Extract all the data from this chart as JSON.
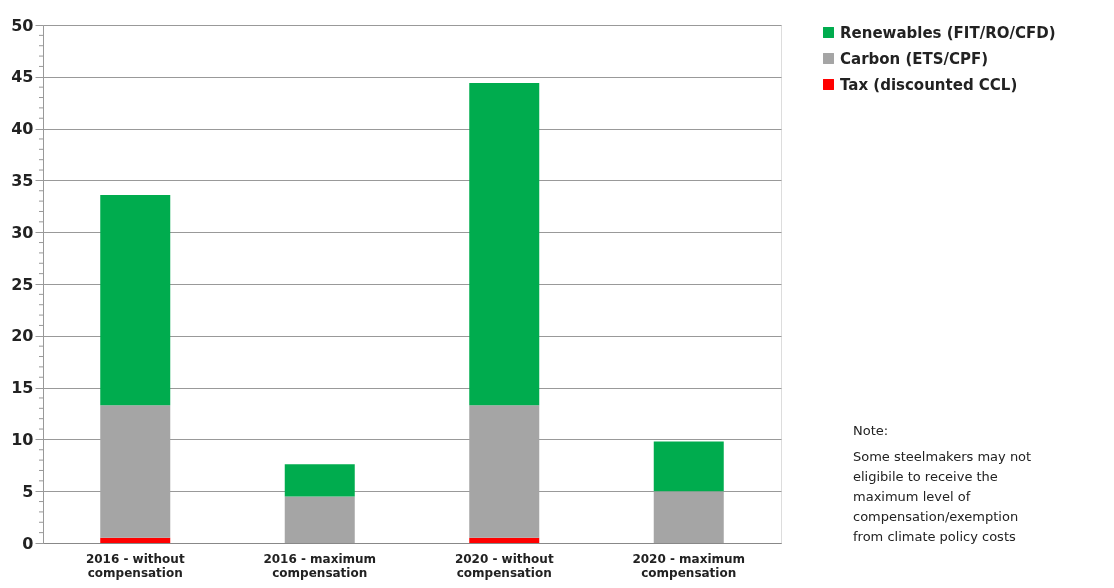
{
  "chart_data": {
    "type": "bar",
    "stacked": true,
    "categories": [
      "2016 - without compensation",
      "2016 - maximum compensation",
      "2020 - without compensation",
      "2020 - maximum compensation"
    ],
    "series": [
      {
        "name": "Tax  (discounted CCL)",
        "color": "#ff0000",
        "values": [
          0.5,
          0,
          0.5,
          0
        ]
      },
      {
        "name": "Carbon  (ETS/CPF)",
        "color": "#a5a5a5",
        "values": [
          12.8,
          4.5,
          12.8,
          5.0
        ]
      },
      {
        "name": "Renewables  (FIT/RO/CFD)",
        "color": "#00ac4e",
        "values": [
          20.3,
          3.1,
          31.1,
          4.8
        ]
      }
    ],
    "ylim": [
      0,
      50
    ],
    "yticks": [
      0,
      {
        "value": 1,
        "label": null
      },
      {
        "value": 2,
        "label": null
      },
      {
        "value": 3,
        "label": null
      },
      {
        "value": 4,
        "label": null
      },
      5,
      {
        "value": 6,
        "label": null
      },
      {
        "value": 7,
        "label": null
      },
      {
        "value": 8,
        "label": null
      },
      {
        "value": 9,
        "label": null
      },
      10,
      {
        "value": 11,
        "label": null
      },
      {
        "value": 12,
        "label": null
      },
      {
        "value": 13,
        "label": null
      },
      {
        "value": 14,
        "label": null
      },
      15,
      {
        "value": 16,
        "label": null
      },
      {
        "value": 17,
        "label": null
      },
      {
        "value": 18,
        "label": null
      },
      {
        "value": 19,
        "label": null
      },
      20,
      {
        "value": 21,
        "label": null
      },
      {
        "value": 22,
        "label": null
      },
      {
        "value": 23,
        "label": null
      },
      {
        "value": 24,
        "label": null
      },
      25,
      {
        "value": 26,
        "label": null
      },
      {
        "value": 27,
        "label": null
      },
      {
        "value": 28,
        "label": null
      },
      {
        "value": 29,
        "label": null
      },
      30,
      {
        "value": 31,
        "label": null
      },
      {
        "value": 32,
        "label": null
      },
      {
        "value": 33,
        "label": null
      },
      {
        "value": 34,
        "label": null
      },
      35,
      {
        "value": 36,
        "label": null
      },
      {
        "value": 37,
        "label": null
      },
      {
        "value": 38,
        "label": null
      },
      {
        "value": 39,
        "label": null
      },
      40,
      {
        "value": 41,
        "label": null
      },
      {
        "value": 42,
        "label": null
      },
      {
        "value": 43,
        "label": null
      },
      {
        "value": 44,
        "label": null
      },
      45,
      {
        "value": 46,
        "label": null
      },
      {
        "value": 47,
        "label": null
      },
      {
        "value": 48,
        "label": null
      },
      {
        "value": 49,
        "label": null
      },
      50
    ],
    "grid": "y",
    "legend": "right",
    "annotations": [
      "Note:",
      "Some steelmakers may not eligibile to receive  the maximum level of compensation/exemption from climate policy costs"
    ]
  }
}
